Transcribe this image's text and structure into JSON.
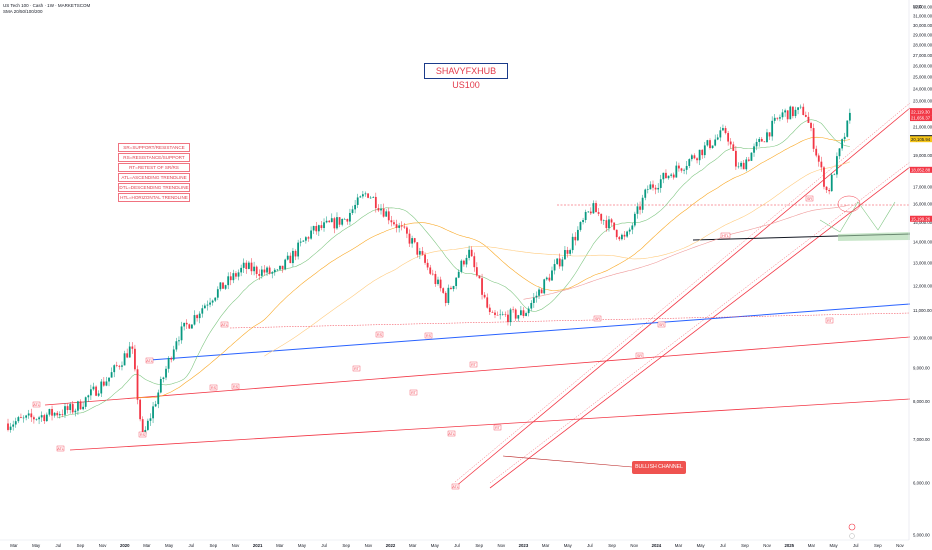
{
  "header": {
    "symbol_line": "US Tech 100 · Cash · 1W · MARKETSCOM",
    "indicator_line": "SMA 20/50/100/200"
  },
  "price_axis": {
    "currency": "USD",
    "labels": [
      "32,000.00",
      "31,000.00",
      "30,000.00",
      "29,000.00",
      "28,000.00",
      "27,000.00",
      "26,000.00",
      "25,000.00",
      "24,000.00",
      "23,000.00",
      "21,000.00",
      "19,000.00",
      "18,000.00",
      "17,000.00",
      "16,000.00",
      "15,000.00",
      "14,000.00",
      "13,000.00",
      "12,000.00",
      "11,000.00",
      "10,000.00",
      "9,000.00",
      "8,000.00",
      "7,000.00",
      "6,000.00",
      "5,000.00"
    ],
    "tags": [
      {
        "text": "22,191.59",
        "color": "#f23645"
      },
      {
        "text": "22,119.30",
        "color": "#f23645"
      },
      {
        "text": "21,656.37",
        "color": "#f23645"
      },
      {
        "text": "20,179.17",
        "color": "#131722"
      },
      {
        "text": "20,105.94",
        "color": "#f5c518"
      },
      {
        "text": "18,052.88",
        "color": "#f23645"
      },
      {
        "text": "15,199.26",
        "color": "#f23645"
      }
    ]
  },
  "time_axis": {
    "labels": [
      "Mar",
      "May",
      "Jul",
      "Sep",
      "Nov",
      "2020",
      "Mar",
      "May",
      "Jul",
      "Sep",
      "Nov",
      "2021",
      "Mar",
      "May",
      "Jul",
      "Sep",
      "Nov",
      "2022",
      "Mar",
      "May",
      "Jul",
      "Sep",
      "Nov",
      "2023",
      "Mar",
      "May",
      "Jul",
      "Sep",
      "Nov",
      "2024",
      "Mar",
      "May",
      "Jul",
      "Sep",
      "Nov",
      "2025",
      "Mar",
      "May",
      "Jul",
      "Sep",
      "Nov"
    ],
    "year_labels": [
      "2020",
      "2021",
      "2022",
      "2023",
      "2024",
      "2025"
    ]
  },
  "brand": "SHAVYFXHUB US100",
  "legend": [
    "SR=SUPPORT/RESISTANCE",
    "RS=RESISTANCE/SUPPORT",
    "RT=RETEST OF SR/RS",
    "ATL=ASCENDING TRENDLINE",
    "DTL=DESCENDING TRENDLINE",
    "HTL=HORIZONTAL TRENDLINE"
  ],
  "callout": "BULLISH CHANNEL",
  "markers": {
    "atl": "ATL",
    "rs": "RS",
    "rt": "RT",
    "sr": "SR",
    "htl": "HTL"
  },
  "colors": {
    "up": "#089981",
    "down": "#f23645",
    "trend_red": "#f23645",
    "trend_blue": "#2962ff",
    "htl_black": "#131722",
    "sma20": "#81c784",
    "sma50": "#f9a825",
    "sma100": "#ffcc80",
    "sma200": "#ef9a9a"
  },
  "chart_data": {
    "type": "candlestick",
    "instrument": "US Tech 100 · Cash",
    "timeframe": "1W",
    "x_range": [
      "2019-03",
      "2025-11"
    ],
    "y_range": [
      5000,
      32000
    ],
    "y_scale": "log",
    "close_path": [
      {
        "date": "2019-03",
        "value": 7400
      },
      {
        "date": "2019-06",
        "value": 7600
      },
      {
        "date": "2019-09",
        "value": 7800
      },
      {
        "date": "2019-12",
        "value": 8700
      },
      {
        "date": "2020-02",
        "value": 9700
      },
      {
        "date": "2020-03",
        "value": 7000
      },
      {
        "date": "2020-06",
        "value": 10000
      },
      {
        "date": "2020-09",
        "value": 11500
      },
      {
        "date": "2020-12",
        "value": 12800
      },
      {
        "date": "2021-03",
        "value": 12500
      },
      {
        "date": "2021-06",
        "value": 14500
      },
      {
        "date": "2021-09",
        "value": 15200
      },
      {
        "date": "2021-11",
        "value": 16700
      },
      {
        "date": "2022-03",
        "value": 14000
      },
      {
        "date": "2022-06",
        "value": 11500
      },
      {
        "date": "2022-08",
        "value": 13600
      },
      {
        "date": "2022-10",
        "value": 10700
      },
      {
        "date": "2023-01",
        "value": 10900
      },
      {
        "date": "2023-05",
        "value": 13800
      },
      {
        "date": "2023-07",
        "value": 15800
      },
      {
        "date": "2023-10",
        "value": 14100
      },
      {
        "date": "2023-12",
        "value": 16900
      },
      {
        "date": "2024-03",
        "value": 18300
      },
      {
        "date": "2024-07",
        "value": 20700
      },
      {
        "date": "2024-08",
        "value": 18000
      },
      {
        "date": "2024-12",
        "value": 22000
      },
      {
        "date": "2025-02",
        "value": 22200
      },
      {
        "date": "2025-04",
        "value": 16600
      },
      {
        "date": "2025-06",
        "value": 21700
      }
    ],
    "horizontal_levels": [
      22191.59,
      22119.3,
      21656.37,
      20179.17,
      20105.94,
      18052.88,
      15199.26
    ],
    "moving_averages": [
      "SMA 20",
      "SMA 50",
      "SMA 100",
      "SMA 200"
    ]
  }
}
